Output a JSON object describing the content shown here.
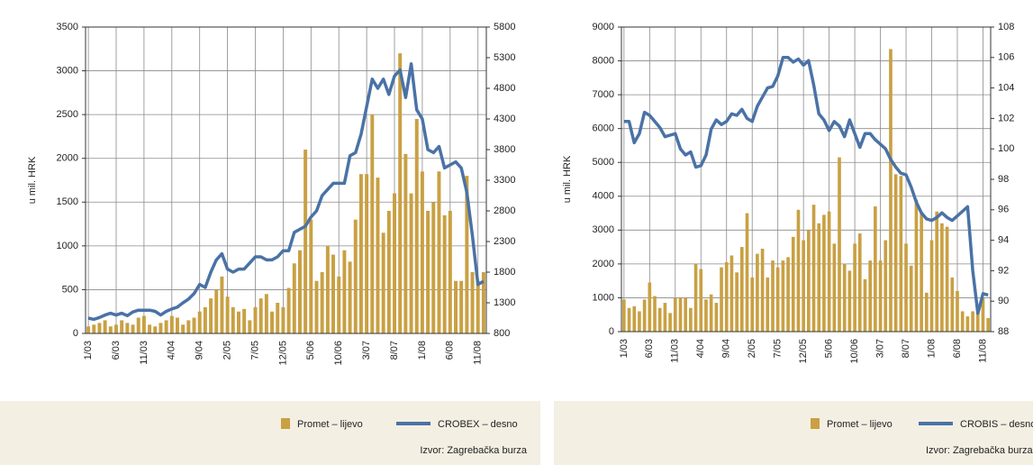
{
  "chart_data": [
    {
      "type": "bar_line",
      "y_label": "u mil. HRK",
      "source": "Izvor: Zagrebačka burza",
      "grid": true,
      "categories": [
        "1/03",
        null,
        null,
        null,
        null,
        "6/03",
        null,
        null,
        null,
        null,
        "11/03",
        null,
        null,
        null,
        null,
        "4/04",
        null,
        null,
        null,
        null,
        "9/04",
        null,
        null,
        null,
        null,
        "2/05",
        null,
        null,
        null,
        null,
        "7/05",
        null,
        null,
        null,
        null,
        "12/05",
        null,
        null,
        null,
        null,
        "5/06",
        null,
        null,
        null,
        null,
        "10/06",
        null,
        null,
        null,
        null,
        "3/07",
        null,
        null,
        null,
        null,
        "8/07",
        null,
        null,
        null,
        null,
        "1/08",
        null,
        null,
        null,
        null,
        "6/08",
        null,
        null,
        null,
        null,
        "11/08",
        null
      ],
      "ylim": [
        0,
        3500
      ],
      "yticks": [
        0,
        500,
        1000,
        1500,
        2000,
        2500,
        3000,
        3500
      ],
      "y2lim": [
        800,
        5800
      ],
      "y2ticks": [
        800,
        1300,
        1800,
        2300,
        2800,
        3300,
        3800,
        4300,
        4800,
        5300,
        5800
      ],
      "series": [
        {
          "name": "Promet – lijevo",
          "type": "bar",
          "color": "#c9a043",
          "values": [
            80,
            100,
            120,
            150,
            80,
            100,
            150,
            120,
            100,
            180,
            200,
            100,
            80,
            120,
            150,
            200,
            180,
            100,
            150,
            180,
            250,
            300,
            400,
            500,
            650,
            420,
            300,
            250,
            280,
            150,
            300,
            400,
            450,
            250,
            350,
            300,
            520,
            800,
            950,
            2100,
            1300,
            600,
            700,
            1000,
            900,
            650,
            950,
            820,
            1300,
            1820,
            1820,
            2500,
            1780,
            1150,
            1400,
            1600,
            3200,
            2050,
            1600,
            2450,
            1850,
            1400,
            1500,
            1850,
            1350,
            1400,
            600,
            600,
            1800,
            700,
            600,
            700
          ]
        },
        {
          "name": "CROBEX – desno",
          "type": "line",
          "axis": "y2",
          "color": "#4a72a6",
          "values": [
            1050,
            1030,
            1060,
            1100,
            1130,
            1100,
            1130,
            1090,
            1150,
            1180,
            1180,
            1180,
            1160,
            1100,
            1160,
            1200,
            1230,
            1300,
            1360,
            1450,
            1600,
            1550,
            1800,
            2000,
            2100,
            1850,
            1800,
            1850,
            1850,
            1950,
            2050,
            2050,
            2000,
            2000,
            2050,
            2150,
            2150,
            2450,
            2500,
            2550,
            2700,
            2800,
            3050,
            3150,
            3250,
            3250,
            3250,
            3700,
            3750,
            4050,
            4500,
            4950,
            4800,
            4950,
            4700,
            5000,
            5100,
            4650,
            5200,
            4450,
            4300,
            3800,
            3750,
            3850,
            3500,
            3550,
            3600,
            3500,
            3100,
            2400,
            1600,
            1650
          ]
        }
      ]
    },
    {
      "type": "bar_line",
      "y_label": "u mil. HRK",
      "source": "Izvor: Zagrebačka burza",
      "grid": true,
      "categories": [
        "1/03",
        null,
        null,
        null,
        null,
        "6/03",
        null,
        null,
        null,
        null,
        "11/03",
        null,
        null,
        null,
        null,
        "4/04",
        null,
        null,
        null,
        null,
        "9/04",
        null,
        null,
        null,
        null,
        "2/05",
        null,
        null,
        null,
        null,
        "7/05",
        null,
        null,
        null,
        null,
        "12/05",
        null,
        null,
        null,
        null,
        "5/06",
        null,
        null,
        null,
        null,
        "10/06",
        null,
        null,
        null,
        null,
        "3/07",
        null,
        null,
        null,
        null,
        "8/07",
        null,
        null,
        null,
        null,
        "1/08",
        null,
        null,
        null,
        null,
        "6/08",
        null,
        null,
        null,
        null,
        "11/08",
        null
      ],
      "ylim": [
        0,
        9000
      ],
      "yticks": [
        0,
        1000,
        2000,
        3000,
        4000,
        5000,
        6000,
        7000,
        8000,
        9000
      ],
      "y2lim": [
        88,
        108
      ],
      "y2ticks": [
        88,
        90,
        92,
        94,
        96,
        98,
        100,
        102,
        104,
        106,
        108
      ],
      "series": [
        {
          "name": "Promet – lijevo",
          "type": "bar",
          "color": "#c9a043",
          "values": [
            950,
            700,
            750,
            600,
            950,
            1450,
            1050,
            700,
            850,
            550,
            1000,
            1000,
            1000,
            700,
            2000,
            1850,
            950,
            1100,
            850,
            1900,
            2050,
            2250,
            1750,
            2500,
            3500,
            1600,
            2300,
            2450,
            1600,
            2100,
            1900,
            2100,
            2200,
            2800,
            3600,
            2700,
            3000,
            3750,
            3200,
            3450,
            3550,
            2600,
            5150,
            2000,
            1800,
            2600,
            2900,
            1550,
            2100,
            3700,
            2100,
            2700,
            8350,
            4650,
            4600,
            2600,
            1950,
            3900,
            3500,
            1150,
            2700,
            3550,
            3200,
            3100,
            1600,
            1200,
            600,
            450,
            600,
            600,
            1000,
            400
          ]
        },
        {
          "name": "CROBIS – desno",
          "type": "line",
          "axis": "y2",
          "color": "#4a72a6",
          "values": [
            101.8,
            101.8,
            100.4,
            101.0,
            102.4,
            102.2,
            101.8,
            101.4,
            100.8,
            100.9,
            101.0,
            100.0,
            99.6,
            99.8,
            98.8,
            98.9,
            99.6,
            101.3,
            101.9,
            101.6,
            101.8,
            102.3,
            102.2,
            102.6,
            102.0,
            101.8,
            102.8,
            103.4,
            104.0,
            104.1,
            104.8,
            106.0,
            106.0,
            105.7,
            105.9,
            105.5,
            105.8,
            104.2,
            102.3,
            101.9,
            101.2,
            101.8,
            101.5,
            100.8,
            101.9,
            101.0,
            100.1,
            101.0,
            101.0,
            100.6,
            100.3,
            100.0,
            99.3,
            98.8,
            98.4,
            98.3,
            97.5,
            96.5,
            95.8,
            95.4,
            95.3,
            95.5,
            95.8,
            95.5,
            95.3,
            95.6,
            95.9,
            96.2,
            92.0,
            89.2,
            90.5,
            90.4
          ]
        }
      ]
    }
  ]
}
